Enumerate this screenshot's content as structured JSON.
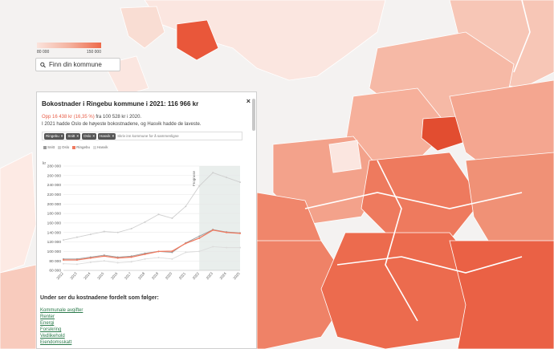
{
  "legend": {
    "min_label": "80 000",
    "max_label": "150 000"
  },
  "search": {
    "placeholder": "Finn din kommune"
  },
  "panel": {
    "title": "Bokostnader i Ringebu kommune i 2021: 116 966 kr",
    "close_label": "×",
    "change_highlight": "Opp 16 438 kr (16,35 %)",
    "change_rest": " fra 100 528 kr i 2020.",
    "description": "I 2021 hadde Oslo de høyeste bokostnadene, og Hasvik hadde de laveste.",
    "compare_placeholder": "Skriv inn kommune for å sammenligne",
    "tags": [
      {
        "label": "Ringebu",
        "remove": "×"
      },
      {
        "label": "Snitt",
        "remove": "×"
      },
      {
        "label": "Oslo",
        "remove": "×"
      },
      {
        "label": "Hasvik",
        "remove": "×"
      }
    ]
  },
  "breakdown": {
    "title": "Under ser du kostnadene fordelt som følger:",
    "links": [
      "Kommunale avgifter",
      "Renter",
      "Energi",
      "Forsikring",
      "Vedlikehold",
      "Eiendomsskatt"
    ]
  },
  "chart_data": {
    "type": "line",
    "title": "",
    "xlabel": "",
    "ylabel": "kr",
    "x": [
      "2012",
      "2013",
      "2014",
      "2015",
      "2016",
      "2017",
      "2018",
      "2019",
      "2020",
      "2021",
      "2022",
      "2023",
      "2024",
      "2025"
    ],
    "ylim": [
      60000,
      280000
    ],
    "yticks": [
      60000,
      80000,
      100000,
      120000,
      140000,
      160000,
      180000,
      200000,
      220000,
      240000,
      260000,
      280000
    ],
    "ytick_labels": [
      "60 000",
      "80 000",
      "100 000",
      "120 000",
      "140 000",
      "160 000",
      "180 000",
      "200 000",
      "220 000",
      "240 000",
      "260 000",
      "280 000"
    ],
    "forecast_label": "Prognose",
    "forecast_start": "2022",
    "legend_position": "top-left",
    "series": [
      {
        "name": "Snitt",
        "color": "#9a9a9a",
        "values": [
          84000,
          84000,
          88000,
          92000,
          88000,
          90000,
          96000,
          100000,
          98000,
          118000,
          132000,
          146000,
          141000,
          139000
        ]
      },
      {
        "name": "Oslo",
        "color": "#cfcfcf",
        "values": [
          124000,
          130000,
          136000,
          142000,
          140000,
          148000,
          162000,
          178000,
          170000,
          195000,
          238000,
          266000,
          256000,
          246000
        ]
      },
      {
        "name": "Ringebu",
        "color": "#ef7a60",
        "values": [
          82000,
          82000,
          86000,
          90000,
          86000,
          88000,
          94000,
          100000,
          100500,
          116966,
          128000,
          145000,
          140000,
          138000
        ]
      },
      {
        "name": "Hasvik",
        "color": "#dcdcdc",
        "values": [
          74000,
          73000,
          77000,
          80000,
          76000,
          78000,
          84000,
          87000,
          84000,
          98000,
          100000,
          110000,
          108000,
          108000
        ]
      }
    ]
  }
}
